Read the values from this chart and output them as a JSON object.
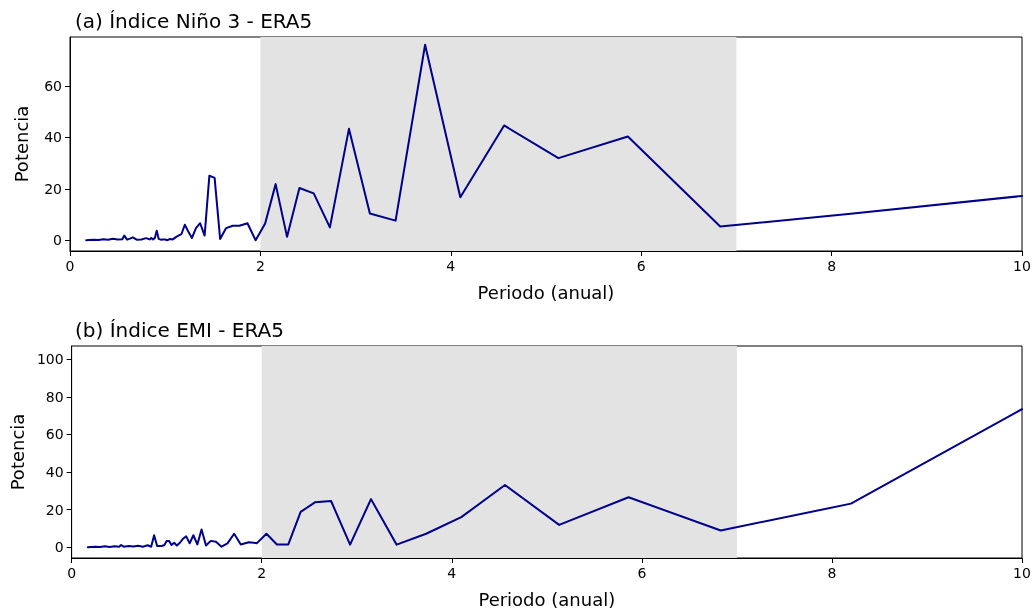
{
  "chart_data": [
    {
      "type": "line",
      "title": "(a) Índice Niño 3 - ERA5",
      "xlabel": "Periodo (anual)",
      "ylabel": "Potencia",
      "xlim": [
        0,
        10
      ],
      "xticks": [
        0,
        2,
        4,
        6,
        8,
        10
      ],
      "ylim": [
        -4.2,
        79
      ],
      "yticks": [
        0,
        20,
        40,
        60
      ],
      "grid": false,
      "marker": "none",
      "line_style": "solid",
      "bands": [
        {
          "axis": "x",
          "from": 2,
          "to": 7,
          "color": "#e3e3e3"
        }
      ],
      "series": [
        {
          "color": "#00008b",
          "x": [
            0.17,
            0.2,
            0.25,
            0.3,
            0.35,
            0.4,
            0.45,
            0.5,
            0.55,
            0.57,
            0.6,
            0.63,
            0.66,
            0.7,
            0.75,
            0.8,
            0.837,
            0.854,
            0.872,
            0.891,
            0.911,
            0.932,
            0.953,
            0.976,
            1.0,
            1.025,
            1.051,
            1.079,
            1.108,
            1.139,
            1.171,
            1.206,
            1.242,
            1.281,
            1.323,
            1.367,
            1.414,
            1.464,
            1.519,
            1.577,
            1.64,
            1.71,
            1.78,
            1.864,
            1.95,
            2.05,
            2.16,
            2.28,
            2.41,
            2.56,
            2.73,
            2.93,
            3.15,
            3.42,
            3.73,
            4.1,
            4.56,
            5.13,
            5.86,
            6.83,
            8.2,
            10
          ],
          "values": [
            0,
            0.1,
            0.2,
            0.1,
            0.4,
            0.2,
            0.6,
            0.3,
            0.4,
            1.8,
            0.2,
            0.6,
            1.1,
            0.2,
            0.3,
            0.8,
            0.3,
            0.9,
            0.3,
            0.9,
            3.7,
            0.5,
            0.2,
            0.3,
            0.3,
            0,
            0.5,
            0.3,
            1.1,
            1.8,
            2.4,
            6,
            3.4,
            0.9,
            4.7,
            6.6,
            1.8,
            25.1,
            24.2,
            0.5,
            4.7,
            5.6,
            5.6,
            6.6,
            0,
            6.5,
            21.8,
            1.3,
            20.3,
            18.2,
            5,
            43.3,
            10.4,
            7.6,
            76,
            16.7,
            44.6,
            31.9,
            40.3,
            5.3,
            10.3,
            17.2
          ]
        }
      ]
    },
    {
      "type": "line",
      "title": "(b) Índice EMI - ERA5",
      "xlabel": "Periodo (anual)",
      "ylabel": "Potencia",
      "xlim": [
        0,
        10
      ],
      "xticks": [
        0,
        2,
        4,
        6,
        8,
        10
      ],
      "ylim": [
        -5.7,
        107
      ],
      "yticks": [
        0,
        20,
        40,
        60,
        80,
        100
      ],
      "grid": false,
      "marker": "none",
      "line_style": "solid",
      "bands": [
        {
          "axis": "x",
          "from": 2,
          "to": 7,
          "color": "#e3e3e3"
        }
      ],
      "series": [
        {
          "color": "#00008b",
          "x": [
            0.17,
            0.2,
            0.25,
            0.3,
            0.35,
            0.4,
            0.45,
            0.5,
            0.52,
            0.55,
            0.6,
            0.65,
            0.7,
            0.75,
            0.8,
            0.837,
            0.868,
            0.9,
            0.95,
            0.976,
            1.0,
            1.025,
            1.051,
            1.079,
            1.108,
            1.139,
            1.171,
            1.206,
            1.242,
            1.281,
            1.323,
            1.367,
            1.414,
            1.464,
            1.519,
            1.577,
            1.64,
            1.71,
            1.78,
            1.864,
            1.95,
            2.05,
            2.16,
            2.28,
            2.41,
            2.56,
            2.73,
            2.93,
            3.15,
            3.42,
            3.73,
            4.1,
            4.56,
            5.13,
            5.86,
            6.83,
            8.2,
            10
          ],
          "values": [
            0,
            0.1,
            0.3,
            0.1,
            0.5,
            0.2,
            0.6,
            0.3,
            1.2,
            0.3,
            0.7,
            0.4,
            0.8,
            0.3,
            1.1,
            0.3,
            6.4,
            0.7,
            0.7,
            1.2,
            3.3,
            3.4,
            1.2,
            2.4,
            0.9,
            2.4,
            4.5,
            5.8,
            2.1,
            6.4,
            1.5,
            9.5,
            0.9,
            3.4,
            2.9,
            0.3,
            2.1,
            7.2,
            1.5,
            2.7,
            2.2,
            7.2,
            1.5,
            1.5,
            18.8,
            23.9,
            24.6,
            1.4,
            25.6,
            1.4,
            7.2,
            16,
            33.1,
            11.9,
            26.6,
            8.9,
            23.2,
            73.4
          ]
        }
      ]
    }
  ]
}
